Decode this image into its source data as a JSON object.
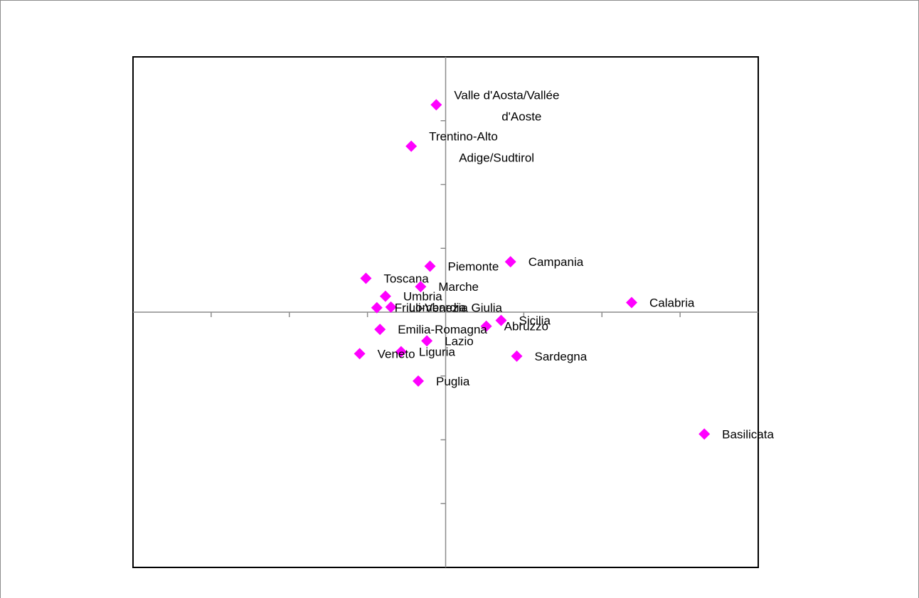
{
  "chart_data": {
    "type": "scatter",
    "title": "",
    "xlabel": "",
    "ylabel": "",
    "xlim": [
      -4,
      4
    ],
    "ylim": [
      -4,
      4
    ],
    "x_ticks": [
      -3,
      -2,
      -1,
      0,
      1,
      2,
      3
    ],
    "y_ticks": [
      -3,
      -2,
      -1,
      0,
      1,
      2,
      3
    ],
    "grid": false,
    "marker_color": "#ff00ff",
    "points": [
      {
        "label": "Valle d'Aosta/Vallée d'Aoste",
        "label_lines": [
          "Valle d'Aosta/Vallée",
          "d'Aoste"
        ],
        "x": -0.12,
        "y": 3.25
      },
      {
        "label": "Trentino-Alto Adige/Sudtirol",
        "label_lines": [
          "Trentino-Alto",
          "Adige/Sudtirol"
        ],
        "x": -0.44,
        "y": 2.6
      },
      {
        "label": "Piemonte",
        "label_lines": [
          "Piemonte"
        ],
        "x": -0.2,
        "y": 0.72
      },
      {
        "label": "Campania",
        "label_lines": [
          "Campania"
        ],
        "x": 0.83,
        "y": 0.79
      },
      {
        "label": "Toscana",
        "label_lines": [
          "Toscana"
        ],
        "x": -1.02,
        "y": 0.53
      },
      {
        "label": "Marche",
        "label_lines": [
          "Marche"
        ],
        "x": -0.32,
        "y": 0.4
      },
      {
        "label": "Umbria",
        "label_lines": [
          "Umbria"
        ],
        "x": -0.77,
        "y": 0.25
      },
      {
        "label": "Lombardia",
        "label_lines": [
          "Lombardia"
        ],
        "x": -0.7,
        "y": 0.08
      },
      {
        "label": "Friuli-Venezia Giulia",
        "label_lines": [
          "Friuli-Venezia Giulia"
        ],
        "x": -0.88,
        "y": 0.07
      },
      {
        "label": "Calabria",
        "label_lines": [
          "Calabria"
        ],
        "x": 2.38,
        "y": 0.15
      },
      {
        "label": "Sicilia",
        "label_lines": [
          "Sicilia"
        ],
        "x": 0.71,
        "y": -0.13
      },
      {
        "label": "Abruzzo",
        "label_lines": [
          "Abruzzo"
        ],
        "x": 0.52,
        "y": -0.22
      },
      {
        "label": "Emilia-Romagna",
        "label_lines": [
          "Emilia-Romagna"
        ],
        "x": -0.84,
        "y": -0.27
      },
      {
        "label": "Lazio",
        "label_lines": [
          "Lazio"
        ],
        "x": -0.24,
        "y": -0.45
      },
      {
        "label": "Liguria",
        "label_lines": [
          "Liguria"
        ],
        "x": -0.57,
        "y": -0.62
      },
      {
        "label": "Veneto",
        "label_lines": [
          "Veneto"
        ],
        "x": -1.1,
        "y": -0.65
      },
      {
        "label": "Sardegna",
        "label_lines": [
          "Sardegna"
        ],
        "x": 0.91,
        "y": -0.69
      },
      {
        "label": "Puglia",
        "label_lines": [
          "Puglia"
        ],
        "x": -0.35,
        "y": -1.08
      },
      {
        "label": "Basilicata",
        "label_lines": [
          "Basilicata"
        ],
        "x": 3.31,
        "y": -1.91
      }
    ]
  }
}
